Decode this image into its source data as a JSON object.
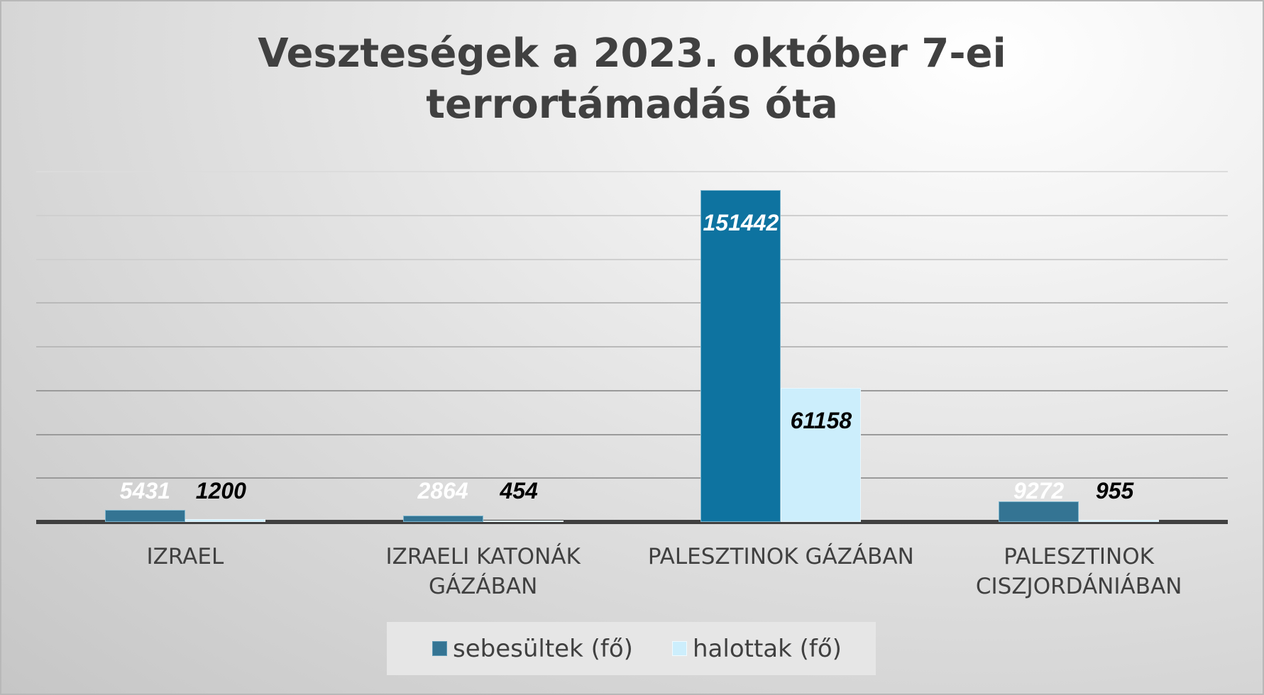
{
  "title_lines": [
    "Veszteségek a 2023. október 7-ei",
    "terrortámadás óta"
  ],
  "colors": {
    "sebesultek": "#0e73a0",
    "sebesultek_small": "#347493",
    "halottak": "#cceefc",
    "axis": "#404040",
    "grid": "#c8c8c8",
    "text": "#404040"
  },
  "legend": [
    {
      "label": "sebesültek (fő)",
      "color": "#347493"
    },
    {
      "label": "halottak (fő)",
      "color": "#cceefc"
    }
  ],
  "chart_data": {
    "type": "bar",
    "title": "Veszteségek a 2023. október 7-ei terrortámadás óta",
    "categories": [
      "IZRAEL",
      "IZRAELI KATONÁK GÁZÁBAN",
      "PALESZTINOK GÁZÁBAN",
      "PALESZTINOK CISZJORDÁNIÁBAN"
    ],
    "category_lines": [
      [
        "IZRAEL"
      ],
      [
        "IZRAELI KATONÁK",
        "GÁZÁBAN"
      ],
      [
        "PALESZTINOK GÁZÁBAN"
      ],
      [
        "PALESZTINOK",
        "CISZJORDÁNIÁBAN"
      ]
    ],
    "series": [
      {
        "name": "sebesültek (fő)",
        "values": [
          5431,
          2864,
          151442,
          9272
        ],
        "labels": [
          "5431",
          "2864",
          "151442",
          "9272"
        ]
      },
      {
        "name": "halottak (fő)",
        "values": [
          1200,
          454,
          61158,
          955
        ],
        "labels": [
          "1200",
          "454",
          "61158",
          "955"
        ]
      }
    ],
    "xlabel": "",
    "ylabel": "",
    "ylim": [
      0,
      160000
    ],
    "grid": true,
    "y_axis_labels_visible": false,
    "legend_position": "bottom"
  }
}
